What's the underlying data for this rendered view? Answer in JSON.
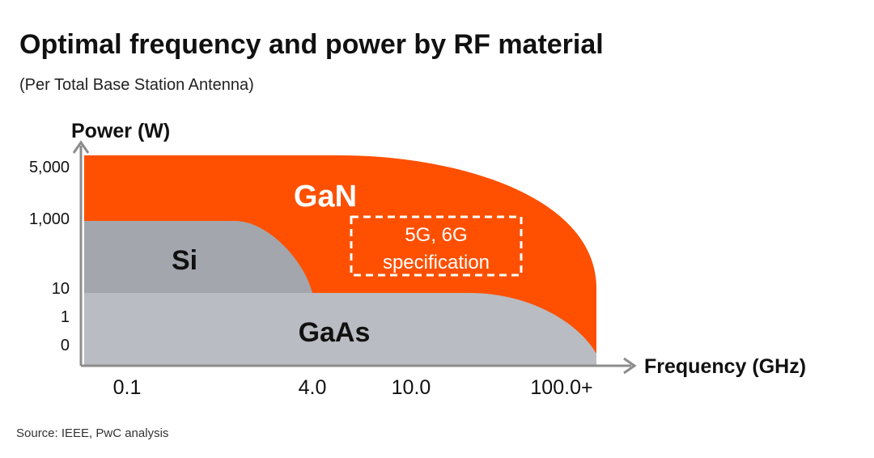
{
  "chart_data": {
    "type": "area",
    "title": "Optimal frequency and power by RF material",
    "subtitle": "(Per Total Base Station Antenna)",
    "xlabel": "Frequency (GHz)",
    "ylabel": "Power (W)",
    "x_ticks": [
      "0.1",
      "4.0",
      "10.0",
      "100.0+"
    ],
    "y_ticks": [
      "5,000",
      "1,000",
      "10",
      "1",
      "0"
    ],
    "series": [
      {
        "name": "GaN",
        "color": "#fe5000",
        "max_frequency": "100.0+",
        "max_power": "5,000"
      },
      {
        "name": "Si",
        "color": "#a3a6ad",
        "max_frequency": "4.0",
        "max_power": "1,000"
      },
      {
        "name": "GaAs",
        "color": "#b9bcc2",
        "max_frequency": "100.0+",
        "max_power": "10"
      }
    ],
    "annotations": [
      {
        "text_line1": "5G, 6G",
        "text_line2": "specification",
        "style": "dashed-box"
      }
    ],
    "source": "Source: IEEE, PwC analysis",
    "colors": {
      "axis": "#8c8c8c",
      "text": "#111111"
    }
  }
}
